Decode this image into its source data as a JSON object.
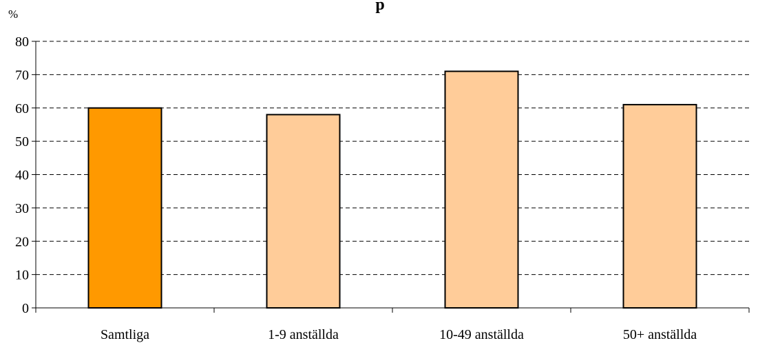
{
  "chart_data": {
    "type": "bar",
    "title": "",
    "title_visible_fragment": "p",
    "ylabel": "%",
    "xlabel": "",
    "categories": [
      "Samtliga",
      "1-9 anställda",
      "10-49 anställda",
      "50+ anställda"
    ],
    "values": [
      60,
      58,
      71,
      61
    ],
    "ylim": [
      0,
      80
    ],
    "yticks": [
      0,
      10,
      20,
      30,
      40,
      50,
      60,
      70,
      80
    ],
    "ytick_labels": [
      "0",
      "10",
      "20",
      "30",
      "40",
      "50",
      "60",
      "70",
      "80"
    ],
    "grid": "horizontal dashed",
    "legend": "none",
    "bar_colors": [
      "#FF9900",
      "#FFCC99",
      "#FFCC99",
      "#FFCC99"
    ],
    "bar_edge_color": "#000000",
    "axis_color": "#000000",
    "grid_color": "#000000"
  }
}
